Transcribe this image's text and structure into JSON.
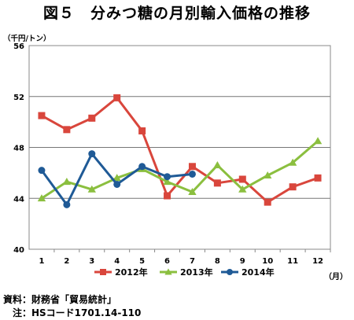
{
  "title": "図５　分みつ糖の月別輸入価格の推移",
  "notes": [
    "資料：財務省「貿易統計」",
    "　注：HSコード1701.14-110"
  ],
  "chart_data": {
    "type": "line",
    "unit_label": "（千円/トン）",
    "xlabel": "（月）",
    "categories": [
      "1",
      "2",
      "3",
      "4",
      "5",
      "6",
      "7",
      "8",
      "9",
      "10",
      "11",
      "12"
    ],
    "ylim": [
      40,
      56
    ],
    "yticks": [
      40,
      44,
      48,
      52,
      56
    ],
    "grid": true,
    "legend_position": "bottom",
    "colors": {
      "2012": "#d9463c",
      "2013": "#8bbf3f",
      "2014": "#1f5a96",
      "grid": "#777777",
      "axis": "#888888"
    },
    "series": [
      {
        "name": "2012年",
        "marker": "square",
        "color": "#d9463c",
        "values": [
          50.5,
          49.4,
          50.3,
          51.9,
          49.3,
          44.2,
          46.5,
          45.2,
          45.5,
          43.7,
          44.9,
          45.6
        ]
      },
      {
        "name": "2013年",
        "marker": "triangle",
        "color": "#8bbf3f",
        "values": [
          44.0,
          45.3,
          44.7,
          45.6,
          46.3,
          45.3,
          44.5,
          46.6,
          44.7,
          45.8,
          46.8,
          48.5
        ]
      },
      {
        "name": "2014年",
        "marker": "circle",
        "color": "#1f5a96",
        "values": [
          46.2,
          43.5,
          47.5,
          45.1,
          46.5,
          45.7,
          45.9,
          null,
          null,
          null,
          null,
          null
        ]
      }
    ]
  }
}
